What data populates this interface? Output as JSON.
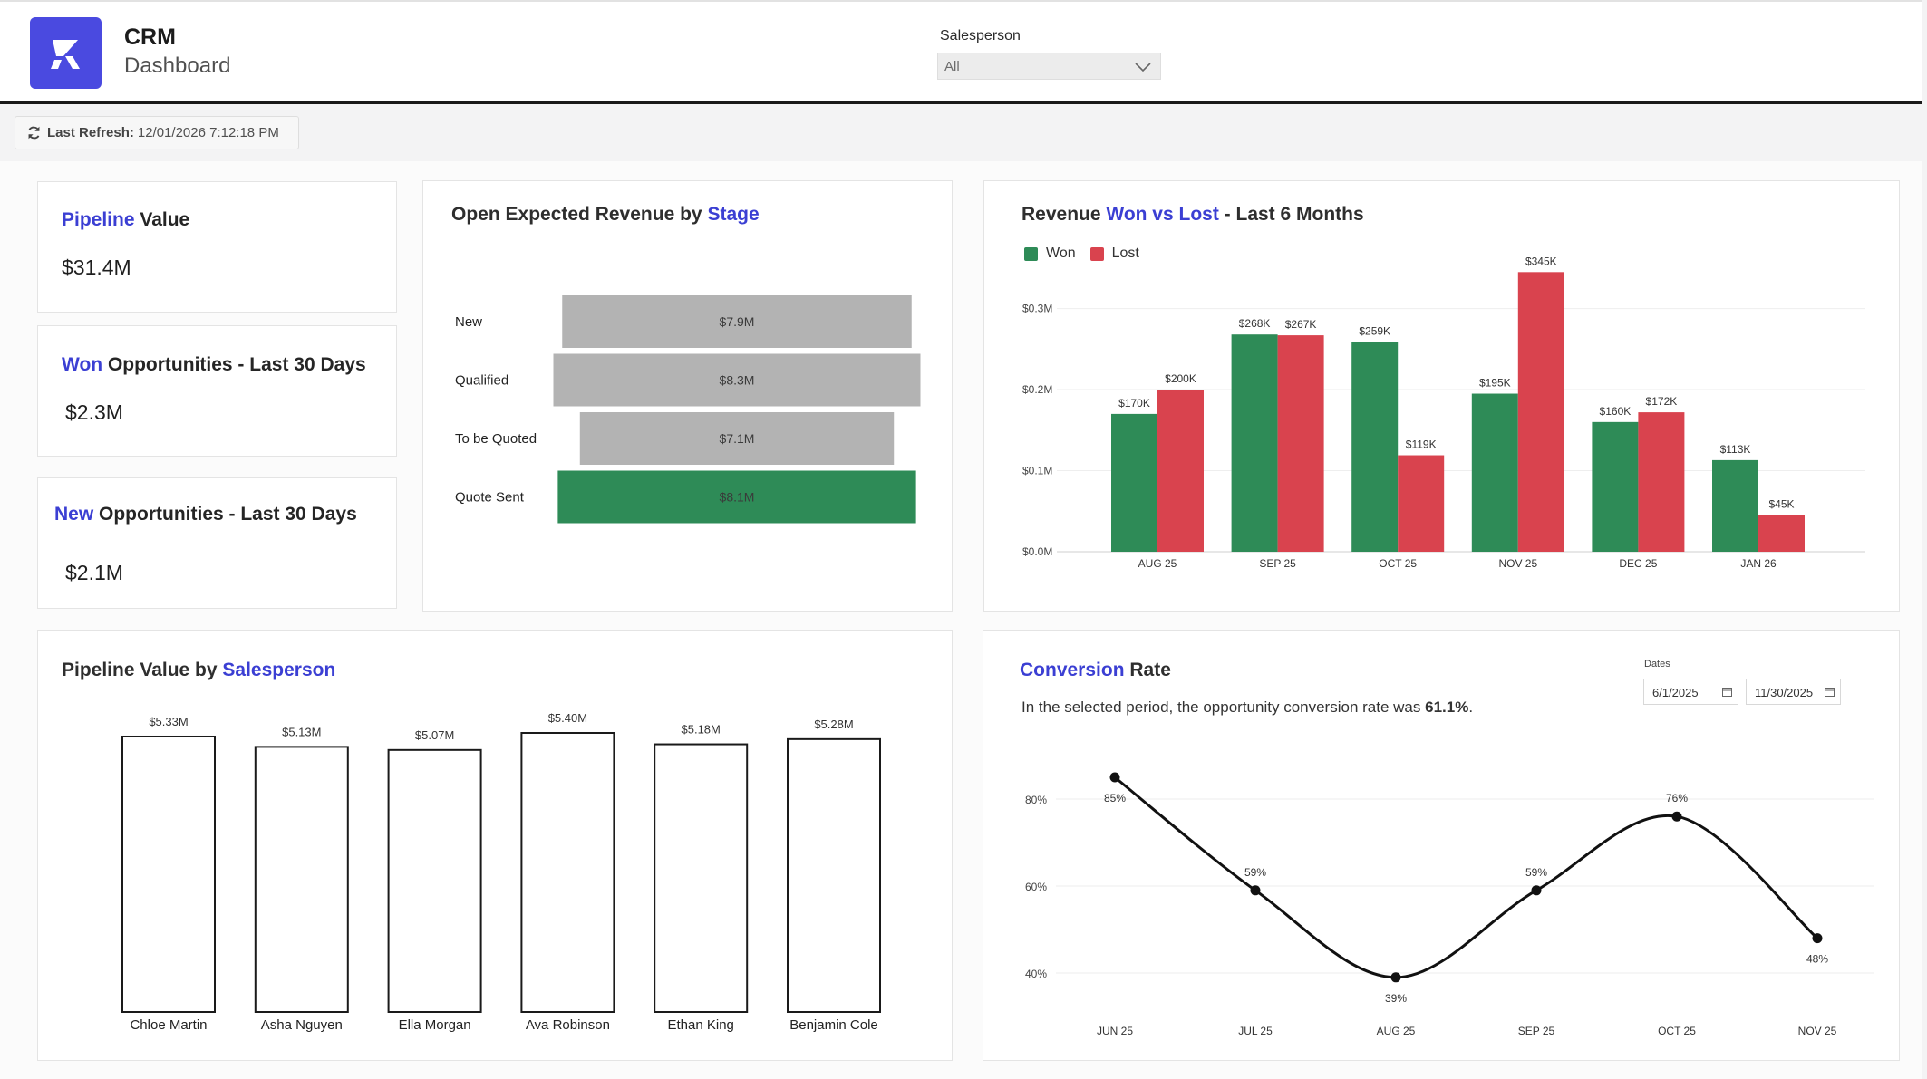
{
  "header": {
    "app_title": "CRM",
    "app_subtitle": "Dashboard",
    "salesperson_label": "Salesperson",
    "salesperson_value": "All"
  },
  "refresh": {
    "label": "Last Refresh:",
    "value": "12/01/2026 7:12:18 PM"
  },
  "kpis": [
    {
      "title_accent": "Pipeline",
      "title_rest": " Value",
      "value": "$31.4M"
    },
    {
      "title_accent": "Won",
      "title_rest": " Opportunities - Last 30 Days",
      "value": "$2.3M"
    },
    {
      "title_accent": "New",
      "title_rest": " Opportunities - Last 30 Days",
      "value": "$2.1M"
    }
  ],
  "stage_panel": {
    "title_pre": "Open Expected Revenue by ",
    "title_accent": "Stage"
  },
  "won_lost_panel": {
    "title_pre": "Revenue ",
    "title_accent": "Won vs Lost",
    "title_post": " - Last 6 Months",
    "legend": [
      "Won",
      "Lost"
    ]
  },
  "salesperson_panel": {
    "title_pre": "Pipeline Value by ",
    "title_accent": "Salesperson"
  },
  "conversion_panel": {
    "title_accent": "Conversion",
    "title_rest": " Rate",
    "summary_pre": "In the selected period, the opportunity conversion rate was ",
    "summary_value": "61.1%",
    "summary_post": ".",
    "dates_label": "Dates",
    "date_from": "6/1/2025",
    "date_to": "11/30/2025"
  },
  "colors": {
    "accent": "#3b3fd3",
    "won": "#2e8b57",
    "lost": "#d9434e",
    "funnel_gray": "#b3b3b3"
  },
  "chart_data": [
    {
      "type": "bar",
      "subtype": "funnel",
      "categories": [
        "New",
        "Qualified",
        "To be Quoted",
        "Quote Sent"
      ],
      "values": [
        7.9,
        8.3,
        7.1,
        8.1
      ],
      "labels": [
        "$7.9M",
        "$8.3M",
        "$7.1M",
        "$8.1M"
      ],
      "highlighted": "Quote Sent"
    },
    {
      "type": "bar",
      "categories": [
        "AUG 25",
        "SEP 25",
        "OCT 25",
        "NOV 25",
        "DEC 25",
        "JAN 26"
      ],
      "series": [
        {
          "name": "Won",
          "values": [
            170,
            268,
            259,
            195,
            160,
            113
          ],
          "labels": [
            "$170K",
            "$268K",
            "$259K",
            "$195K",
            "$160K",
            "$113K"
          ]
        },
        {
          "name": "Lost",
          "values": [
            200,
            267,
            119,
            345,
            172,
            45
          ],
          "labels": [
            "$200K",
            "$267K",
            "$119K",
            "$345K",
            "$172K",
            "$45K"
          ]
        }
      ],
      "yticks": [
        "$0.0M",
        "$0.1M",
        "$0.2M",
        "$0.3M"
      ],
      "ylim": [
        0,
        380
      ],
      "grid": true,
      "legend": "top-left"
    },
    {
      "type": "bar",
      "categories": [
        "Chloe Martin",
        "Asha Nguyen",
        "Ella Morgan",
        "Ava Robinson",
        "Ethan King",
        "Benjamin Cole"
      ],
      "values": [
        5.33,
        5.13,
        5.07,
        5.4,
        5.18,
        5.28
      ],
      "labels": [
        "$5.33M",
        "$5.13M",
        "$5.07M",
        "$5.40M",
        "$5.18M",
        "$5.28M"
      ]
    },
    {
      "type": "line",
      "x": [
        "JUN 25",
        "JUL 25",
        "AUG 25",
        "SEP 25",
        "OCT 25",
        "NOV 25"
      ],
      "values": [
        85,
        59,
        39,
        59,
        76,
        48
      ],
      "labels": [
        "85%",
        "59%",
        "39%",
        "59%",
        "76%",
        "48%"
      ],
      "yticks": [
        "40%",
        "60%",
        "80%"
      ],
      "ylim": [
        34,
        90
      ],
      "grid": true
    }
  ]
}
